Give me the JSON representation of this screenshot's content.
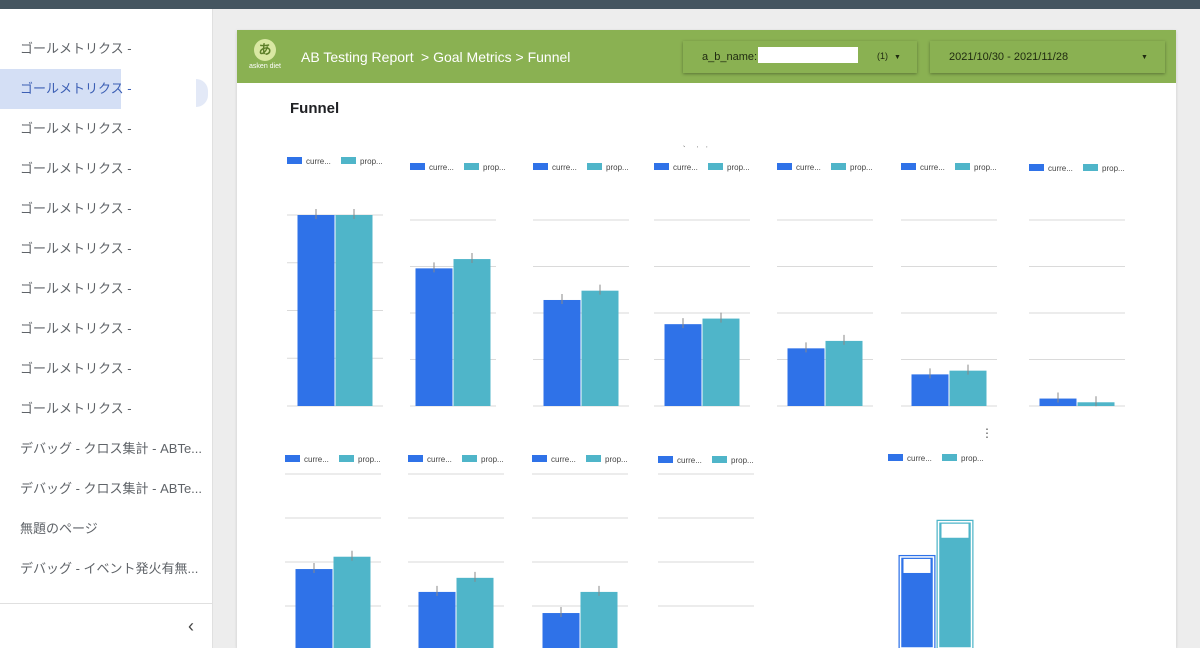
{
  "sidebar": {
    "items": [
      {
        "label": "ゴールメトリクス -"
      },
      {
        "label": "ゴールメトリクス -",
        "active": true
      },
      {
        "label": "ゴールメトリクス -"
      },
      {
        "label": "ゴールメトリクス -"
      },
      {
        "label": "ゴールメトリクス -"
      },
      {
        "label": "ゴールメトリクス -"
      },
      {
        "label": "ゴールメトリクス -"
      },
      {
        "label": "ゴールメトリクス -"
      },
      {
        "label": "ゴールメトリクス -"
      },
      {
        "label": "ゴールメトリクス -"
      },
      {
        "label": "デバッグ - クロス集計 - ABTe..."
      },
      {
        "label": "デバッグ - クロス集計 - ABTe..."
      },
      {
        "label": "無題のページ"
      },
      {
        "label": "デバッグ - イベント発火有無..."
      }
    ],
    "collapse_glyph": "‹",
    "collapse_icon": "chevron-left-icon"
  },
  "header": {
    "logo_glyph": "あ",
    "logo_text": "asken diet",
    "title": "AB Testing Report",
    "breadcrumb": "> Goal Metrics > Funnel",
    "ab_filter": {
      "label": "a_b_name:",
      "value": "",
      "count": "(1)",
      "caret": "▼"
    },
    "date_range": {
      "value": "2021/10/30 - 2021/11/28",
      "caret": "▼"
    },
    "color": "#8ab152"
  },
  "main": {
    "section_title": "Funnel",
    "more_glyph": "⋮",
    "stray_glyph": "、 ,  ,"
  },
  "colors": {
    "current": "#2f72e8",
    "proposed": "#4fb5c9"
  },
  "chart_data": [
    {
      "type": "bar",
      "row": 1,
      "legend": [
        "curre...",
        "prop..."
      ],
      "series": [
        {
          "name": "curre...",
          "values": [
            100
          ]
        },
        {
          "name": "prop...",
          "values": [
            100
          ]
        }
      ],
      "ylim": [
        0,
        100
      ],
      "grid": true,
      "error_bars": true
    },
    {
      "type": "bar",
      "row": 1,
      "legend": [
        "curre...",
        "prop..."
      ],
      "series": [
        {
          "name": "curre...",
          "values": [
            74
          ]
        },
        {
          "name": "prop...",
          "values": [
            79
          ]
        }
      ],
      "ylim": [
        0,
        100
      ],
      "grid": true,
      "error_bars": true
    },
    {
      "type": "bar",
      "row": 1,
      "legend": [
        "curre...",
        "prop..."
      ],
      "series": [
        {
          "name": "curre...",
          "values": [
            57
          ]
        },
        {
          "name": "prop...",
          "values": [
            62
          ]
        }
      ],
      "ylim": [
        0,
        100
      ],
      "grid": true,
      "error_bars": true
    },
    {
      "type": "bar",
      "row": 1,
      "legend": [
        "curre...",
        "prop..."
      ],
      "series": [
        {
          "name": "curre...",
          "values": [
            44
          ]
        },
        {
          "name": "prop...",
          "values": [
            47
          ]
        }
      ],
      "ylim": [
        0,
        100
      ],
      "grid": true,
      "error_bars": true
    },
    {
      "type": "bar",
      "row": 1,
      "legend": [
        "curre...",
        "prop..."
      ],
      "series": [
        {
          "name": "curre...",
          "values": [
            31
          ]
        },
        {
          "name": "prop...",
          "values": [
            35
          ]
        }
      ],
      "ylim": [
        0,
        100
      ],
      "grid": true,
      "error_bars": true
    },
    {
      "type": "bar",
      "row": 1,
      "legend": [
        "curre...",
        "prop..."
      ],
      "series": [
        {
          "name": "curre...",
          "values": [
            17
          ]
        },
        {
          "name": "prop...",
          "values": [
            19
          ]
        }
      ],
      "ylim": [
        0,
        100
      ],
      "grid": true,
      "error_bars": true
    },
    {
      "type": "bar",
      "row": 1,
      "legend": [
        "curre...",
        "prop..."
      ],
      "series": [
        {
          "name": "curre...",
          "values": [
            4
          ]
        },
        {
          "name": "prop...",
          "values": [
            2
          ]
        }
      ],
      "ylim": [
        0,
        100
      ],
      "grid": true,
      "error_bars": true
    },
    {
      "type": "bar",
      "row": 2,
      "legend": [
        "curre...",
        "prop..."
      ],
      "series": [
        {
          "name": "curre...",
          "values": [
            46
          ]
        },
        {
          "name": "prop...",
          "values": [
            53
          ]
        }
      ],
      "ylim": [
        0,
        100
      ],
      "grid": true,
      "error_bars": true
    },
    {
      "type": "bar",
      "row": 2,
      "legend": [
        "curre...",
        "prop..."
      ],
      "series": [
        {
          "name": "curre...",
          "values": [
            33
          ]
        },
        {
          "name": "prop...",
          "values": [
            41
          ]
        }
      ],
      "ylim": [
        0,
        100
      ],
      "grid": true,
      "error_bars": true
    },
    {
      "type": "bar",
      "row": 2,
      "legend": [
        "curre...",
        "prop..."
      ],
      "series": [
        {
          "name": "curre...",
          "values": [
            21
          ]
        },
        {
          "name": "prop...",
          "values": [
            33
          ]
        }
      ],
      "ylim": [
        0,
        100
      ],
      "grid": true,
      "error_bars": true
    },
    {
      "type": "bar",
      "row": 2,
      "legend": [
        "curre...",
        "prop..."
      ],
      "series": [],
      "ylim": [
        0,
        100
      ],
      "grid": true,
      "error_bars": false
    },
    {
      "type": "bar",
      "row": 2,
      "legend": [
        "curre...",
        "prop..."
      ],
      "series": [
        {
          "name": "curre...",
          "values": [
            54
          ]
        },
        {
          "name": "prop...",
          "values": [
            74
          ]
        }
      ],
      "ylim": [
        0,
        100
      ],
      "grid": false,
      "error_bars": false,
      "data_label_boxes": true
    }
  ]
}
